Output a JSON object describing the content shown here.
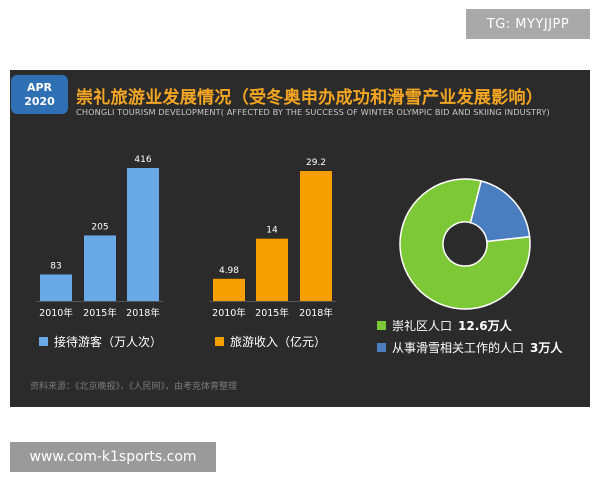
{
  "watermark_top": "TG: MYYJJPP",
  "watermark_bottom": "www.com-k1sports.com",
  "badge": {
    "line1": "APR",
    "line2": "2020"
  },
  "title": "崇礼旅游业发展情况（受冬奥申办成功和滑雪产业发展影响）",
  "subtitle": "CHONGLI TOURISM DEVELOPMENT( AFFECTED BY THE SUCCESS OF WINTER OLYMPIC BID AND SKIING INDUSTRY)",
  "colors": {
    "blue": "#6aa9e8",
    "orange": "#f5a000",
    "green": "#7cc836",
    "steel": "#4a7ec0",
    "title": "#f5a623"
  },
  "legends": {
    "visitors": "接待游客（万人次）",
    "income": "旅游收入（亿元）",
    "pie_a_label": "崇礼区人口",
    "pie_a_value": "12.6万人",
    "pie_b_label": "从事滑雪相关工作的人口",
    "pie_b_value": "3万人"
  },
  "source": "资料来源：《北京晚报》，《人民网》，由考克体育整理",
  "chart_data": [
    {
      "type": "bar",
      "categories": [
        "2010年",
        "2015年",
        "2018年"
      ],
      "values": [
        83,
        205,
        416
      ],
      "labels": [
        "83",
        "205",
        "416"
      ],
      "series_name": "接待游客（万人次）",
      "color": "#6aa9e8"
    },
    {
      "type": "bar",
      "categories": [
        "2010年",
        "2015年",
        "2018年"
      ],
      "values": [
        4.98,
        14,
        29.2
      ],
      "labels": [
        "4.98",
        "14",
        "29.2"
      ],
      "series_name": "旅游收入（亿元）",
      "color": "#f5a000"
    },
    {
      "type": "pie",
      "labels": [
        "崇礼区人口",
        "从事滑雪相关工作的人口"
      ],
      "values": [
        12.6,
        3
      ],
      "colors": [
        "#7cc836",
        "#4a7ec0"
      ]
    }
  ]
}
